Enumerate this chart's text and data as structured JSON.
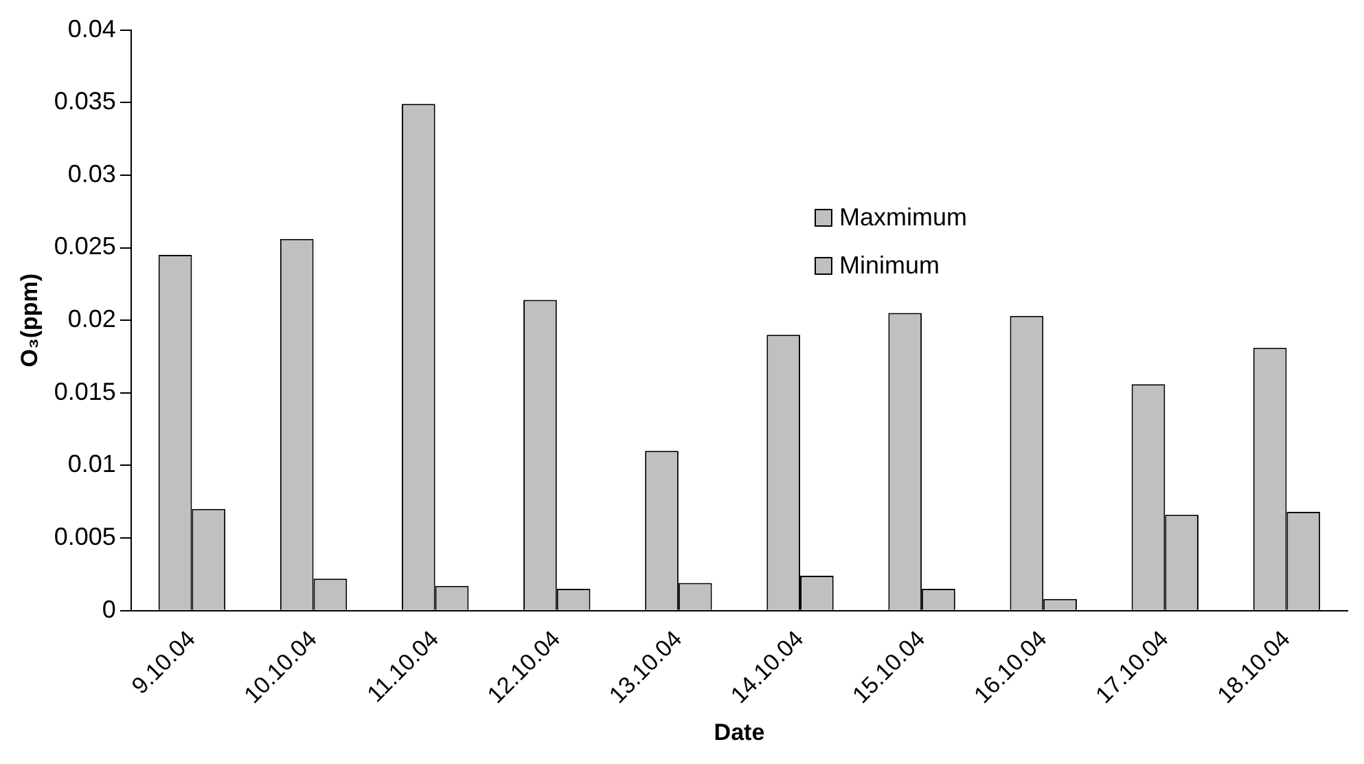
{
  "chart_data": {
    "type": "bar",
    "xlabel": "Date",
    "ylabel": "O₃(ppm)",
    "categories": [
      "9.10.04",
      "10.10.04",
      "11.10.04",
      "12.10.04",
      "13.10.04",
      "14.10.04",
      "15.10.04",
      "16.10.04",
      "17.10.04",
      "18.10.04"
    ],
    "series": [
      {
        "name": "Maxmimum",
        "color": "#c0c0c0",
        "values": [
          0.0245,
          0.0256,
          0.0349,
          0.0214,
          0.011,
          0.019,
          0.0205,
          0.0203,
          0.0156,
          0.0181
        ]
      },
      {
        "name": "Minimum",
        "color": "#c0c0c0",
        "values": [
          0.007,
          0.0022,
          0.0017,
          0.0015,
          0.0019,
          0.0024,
          0.0015,
          0.0008,
          0.0066,
          0.0068
        ]
      }
    ],
    "ylim": [
      0,
      0.04
    ],
    "yticks": [
      0,
      0.005,
      0.01,
      0.015,
      0.02,
      0.025,
      0.03,
      0.035,
      0.04
    ],
    "grid": false,
    "legend": "top right"
  }
}
